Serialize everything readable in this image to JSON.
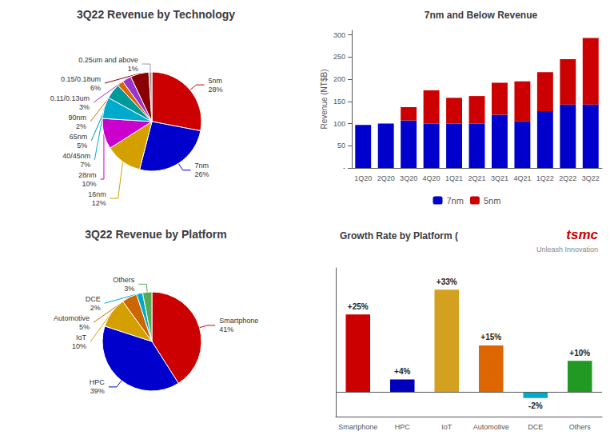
{
  "chart_data": [
    {
      "type": "pie",
      "title": "3Q22 Revenue by Technology",
      "categories": [
        "5nm",
        "7nm",
        "16nm",
        "28nm",
        "40/45nm",
        "65nm",
        "90nm",
        "0.11/0.13um",
        "0.15/0.18um",
        "0.25um and above"
      ],
      "values": [
        28,
        26,
        12,
        10,
        7,
        5,
        2,
        3,
        6,
        1
      ],
      "value_labels": [
        "28%",
        "26%",
        "12%",
        "10%",
        "7%",
        "5%",
        "2%",
        "3%",
        "6%",
        "1%"
      ],
      "colors": [
        "#cc0000",
        "#0000cc",
        "#d4a000",
        "#cc00cc",
        "#00aacc",
        "#009999",
        "#dd6600",
        "#9933cc",
        "#880000",
        "#999999"
      ],
      "data_labels": true
    },
    {
      "type": "bar",
      "title": "7nm and Below Revenue",
      "categories": [
        "1Q20",
        "2Q20",
        "3Q20",
        "4Q20",
        "1Q21",
        "2Q21",
        "3Q21",
        "4Q21",
        "1Q22",
        "2Q22",
        "3Q22"
      ],
      "series": [
        {
          "name": "7nm",
          "color": "#0000cc",
          "values": [
            97,
            100,
            107,
            100,
            100,
            100,
            120,
            105,
            128,
            143,
            143
          ]
        },
        {
          "name": "5nm",
          "color": "#cc0000",
          "values": [
            0,
            0,
            30,
            75,
            58,
            62,
            72,
            90,
            88,
            102,
            150
          ]
        }
      ],
      "stacked": true,
      "ylabel": "Revenue (NT$B)",
      "ylim": [
        0,
        310
      ],
      "yticks": [
        {
          "value": 0,
          "label": "-"
        },
        50,
        100,
        150,
        200,
        250,
        300
      ],
      "legend": "bottom",
      "grid": false
    },
    {
      "type": "pie",
      "title": "3Q22 Revenue by Platform",
      "categories": [
        "Smartphone",
        "HPC",
        "IoT",
        "Automotive",
        "DCE",
        "Others"
      ],
      "values": [
        41,
        39,
        10,
        5,
        2,
        3
      ],
      "value_labels": [
        "41%",
        "39%",
        "10%",
        "5%",
        "2%",
        "3%"
      ],
      "colors": [
        "#cc0000",
        "#0000cc",
        "#d4a000",
        "#cc6600",
        "#00aacc",
        "#55aa55"
      ],
      "data_labels": true
    },
    {
      "type": "bar",
      "title": "Growth Rate by Platform (",
      "categories": [
        "Smartphone",
        "HPC",
        "IoT",
        "Automotive",
        "DCE",
        "Others"
      ],
      "values": [
        25,
        4,
        33,
        15,
        -2,
        10
      ],
      "value_labels": [
        "+25%",
        "+4%",
        "+33%",
        "+15%",
        "-2%",
        "+10%"
      ],
      "colors": [
        "#cc0000",
        "#0000bb",
        "#d4a020",
        "#dd6600",
        "#00aacc",
        "#229922"
      ],
      "ylim": [
        -8,
        40
      ],
      "tick_labels": "x",
      "data_labels": true,
      "grid": false,
      "annotations": [
        {
          "text": "tsmc",
          "color": "#cc0000"
        },
        {
          "text": "Unleash Innovation"
        }
      ]
    }
  ]
}
